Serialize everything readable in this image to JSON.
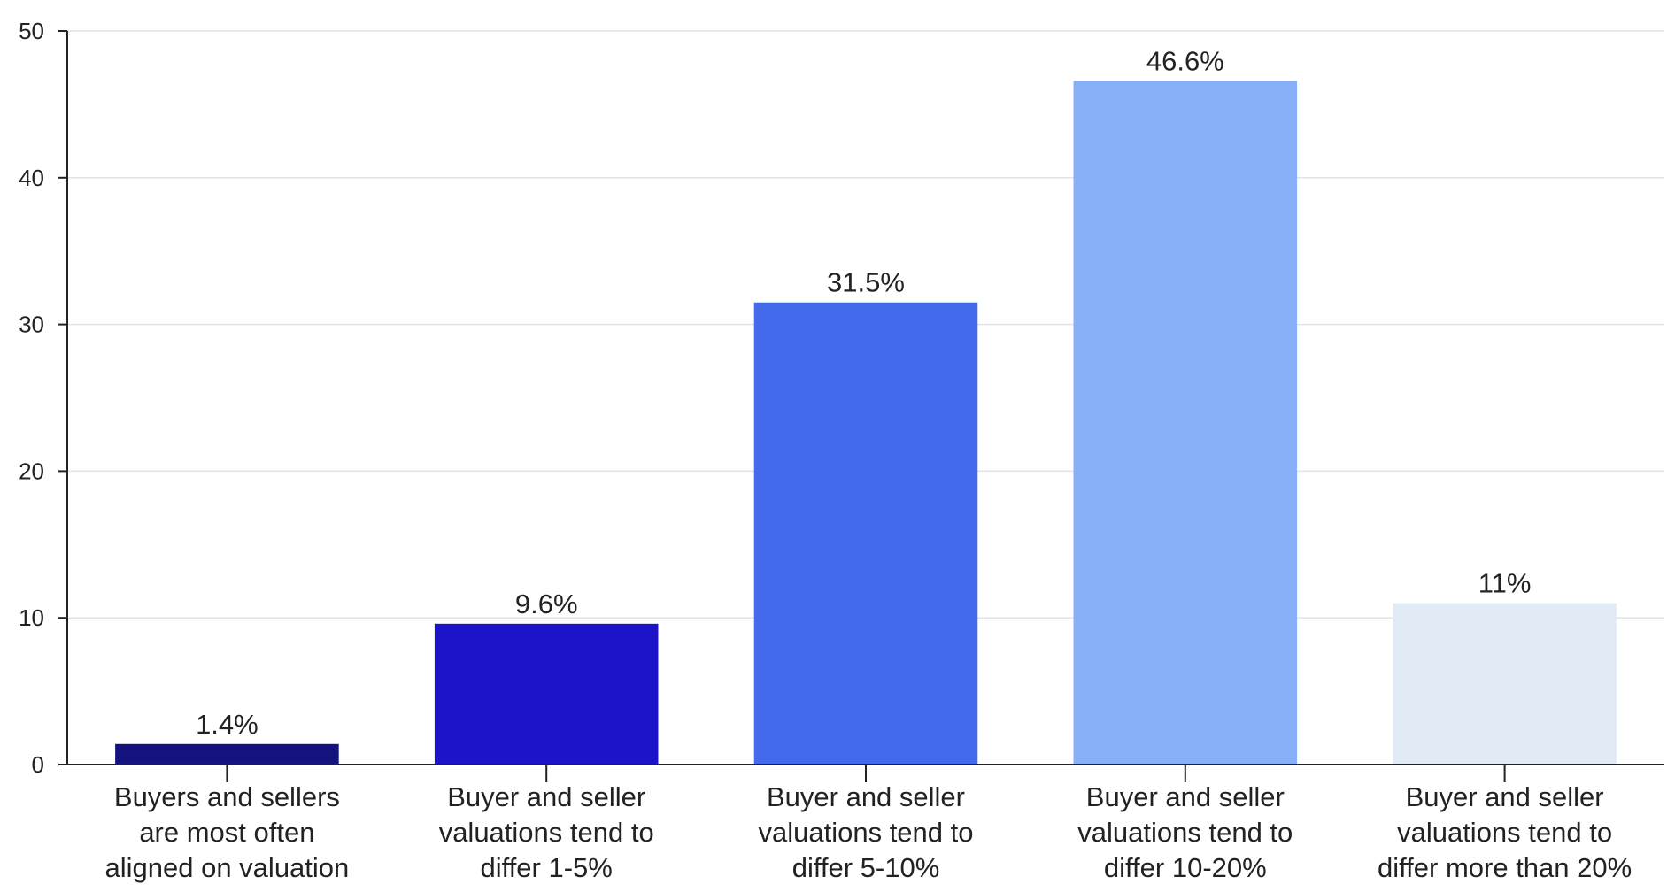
{
  "chart_data": {
    "type": "bar",
    "categories": [
      [
        "Buyers and sellers",
        "are most often",
        "aligned on valuation"
      ],
      [
        "Buyer and seller",
        "valuations tend to",
        "differ 1-5%"
      ],
      [
        "Buyer and seller",
        "valuations tend to",
        "differ 5-10%"
      ],
      [
        "Buyer and seller",
        "valuations tend to",
        "differ 10-20%"
      ],
      [
        "Buyer and seller",
        "valuations tend to",
        "differ more than 20%"
      ]
    ],
    "values": [
      1.4,
      9.6,
      31.5,
      46.6,
      11
    ],
    "data_labels": [
      "1.4%",
      "9.6%",
      "31.5%",
      "46.6%",
      "11%"
    ],
    "colors": [
      "#14137e",
      "#1d14c9",
      "#426aeb",
      "#87b0f8",
      "#e1ebf5"
    ],
    "ylim": [
      0,
      50
    ],
    "yticks": [
      0,
      10,
      20,
      30,
      40,
      50
    ],
    "grid": true,
    "legend": "none"
  }
}
